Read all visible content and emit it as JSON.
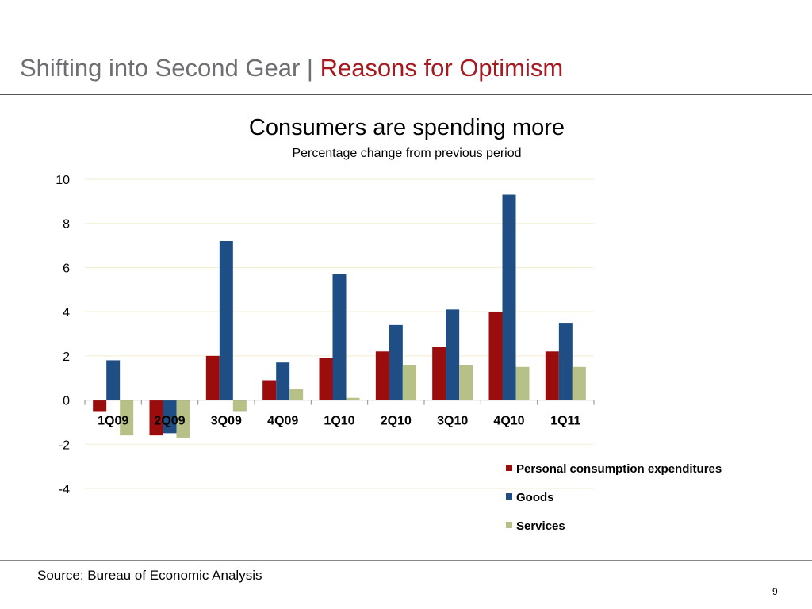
{
  "header": {
    "title_main": "Shifting into Second Gear | ",
    "title_accent": "Reasons for Optimism"
  },
  "footer": {
    "source": "Source: Bureau of Economic Analysis",
    "page_number": "9"
  },
  "colors": {
    "title_gray": "#6d6e71",
    "accent_red": "#a6191f"
  },
  "chart_data": {
    "type": "bar",
    "title": "Consumers are spending more",
    "subtitle": "Percentage change from previous period",
    "categories": [
      "1Q09",
      "2Q09",
      "3Q09",
      "4Q09",
      "1Q10",
      "2Q10",
      "3Q10",
      "4Q10",
      "1Q11"
    ],
    "series": [
      {
        "name": "Personal consumption expenditures",
        "color": "#9b0d0d",
        "values": [
          -0.5,
          -1.6,
          2.0,
          0.9,
          1.9,
          2.2,
          2.4,
          4.0,
          2.2
        ]
      },
      {
        "name": "Goods",
        "color": "#1f4e85",
        "values": [
          1.8,
          -1.5,
          7.2,
          1.7,
          5.7,
          3.4,
          4.1,
          9.3,
          3.5
        ]
      },
      {
        "name": "Services",
        "color": "#b7c087",
        "values": [
          -1.6,
          -1.7,
          -0.5,
          0.5,
          0.1,
          1.6,
          1.6,
          1.5,
          1.5
        ]
      }
    ],
    "y_ticks": [
      10,
      8,
      6,
      4,
      2,
      0,
      -2,
      -4
    ],
    "ylim": [
      -4,
      10
    ],
    "grid": true,
    "legend_position": "bottom-right",
    "xlabel": "",
    "ylabel": ""
  }
}
